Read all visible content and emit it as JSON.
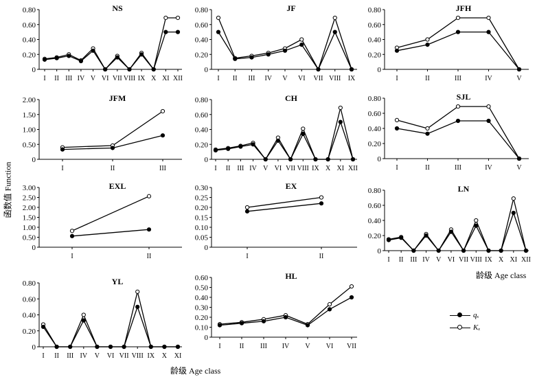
{
  "figure": {
    "y_title": "函数值 Function",
    "x_title_mid": "龄级 Age class",
    "x_title_bottom": "龄级 Age class",
    "legend": [
      {
        "label": "qₓ",
        "marker": "filled"
      },
      {
        "label": "Kₓ",
        "marker": "hollow"
      }
    ]
  },
  "chart_data": [
    {
      "type": "line",
      "title": "NS",
      "categories": [
        "I",
        "II",
        "III",
        "IV",
        "V",
        "VI",
        "VII",
        "VIII",
        "IX",
        "X",
        "XI",
        "XII"
      ],
      "ylim": [
        0,
        0.8
      ],
      "yticks": [
        "0",
        "0.20",
        "0.40",
        "0.60",
        "0.80"
      ],
      "series": [
        {
          "name": "qₓ",
          "values": [
            0.13,
            0.15,
            0.18,
            0.11,
            0.25,
            0,
            0.16,
            0,
            0.2,
            0,
            0.5,
            0.5
          ]
        },
        {
          "name": "Kₓ",
          "values": [
            0.14,
            0.16,
            0.2,
            0.12,
            0.28,
            0,
            0.18,
            0,
            0.22,
            0,
            0.69,
            0.69
          ]
        }
      ]
    },
    {
      "type": "line",
      "title": "JF",
      "categories": [
        "I",
        "II",
        "III",
        "IV",
        "V",
        "VI",
        "VII",
        "VIII",
        "IX"
      ],
      "ylim": [
        0,
        0.8
      ],
      "yticks": [
        "0",
        "0.20",
        "0.40",
        "0.60",
        "0.80"
      ],
      "series": [
        {
          "name": "qₓ",
          "values": [
            0.5,
            0.14,
            0.16,
            0.2,
            0.25,
            0.33,
            0,
            0.5,
            0
          ]
        },
        {
          "name": "Kₓ",
          "values": [
            0.69,
            0.15,
            0.18,
            0.22,
            0.28,
            0.4,
            0,
            0.69,
            0
          ]
        }
      ]
    },
    {
      "type": "line",
      "title": "JFH",
      "categories": [
        "I",
        "II",
        "III",
        "IV",
        "V"
      ],
      "ylim": [
        0,
        0.8
      ],
      "yticks": [
        "0",
        "0.20",
        "0.40",
        "0.60",
        "0.80"
      ],
      "series": [
        {
          "name": "qₓ",
          "values": [
            0.25,
            0.33,
            0.5,
            0.5,
            0
          ]
        },
        {
          "name": "Kₓ",
          "values": [
            0.29,
            0.4,
            0.69,
            0.69,
            0
          ]
        }
      ]
    },
    {
      "type": "line",
      "title": "JFM",
      "categories": [
        "I",
        "II",
        "III"
      ],
      "ylim": [
        0,
        2
      ],
      "yticks": [
        "0",
        "0.50",
        "1.00",
        "1.50",
        "2.00"
      ],
      "series": [
        {
          "name": "qₓ",
          "values": [
            0.33,
            0.38,
            0.8
          ]
        },
        {
          "name": "Kₓ",
          "values": [
            0.4,
            0.46,
            1.61
          ]
        }
      ]
    },
    {
      "type": "line",
      "title": "CH",
      "categories": [
        "I",
        "II",
        "III",
        "IV",
        "V",
        "VI",
        "VII",
        "VIII",
        "IX",
        "X",
        "XI",
        "XII"
      ],
      "ylim": [
        0,
        0.8
      ],
      "yticks": [
        "0",
        "0.20",
        "0.40",
        "0.60",
        "0.80"
      ],
      "series": [
        {
          "name": "qₓ",
          "values": [
            0.12,
            0.14,
            0.17,
            0.2,
            0,
            0.25,
            0,
            0.34,
            0,
            0,
            0.5,
            0
          ]
        },
        {
          "name": "Kₓ",
          "values": [
            0.13,
            0.15,
            0.18,
            0.22,
            0,
            0.29,
            0,
            0.41,
            0,
            0,
            0.69,
            0
          ]
        }
      ]
    },
    {
      "type": "line",
      "title": "SJL",
      "categories": [
        "I",
        "II",
        "III",
        "IV",
        "V"
      ],
      "ylim": [
        0,
        0.8
      ],
      "yticks": [
        "0",
        "0.20",
        "0.40",
        "0.60",
        "0.80"
      ],
      "series": [
        {
          "name": "qₓ",
          "values": [
            0.4,
            0.33,
            0.5,
            0.5,
            0
          ]
        },
        {
          "name": "Kₓ",
          "values": [
            0.51,
            0.4,
            0.69,
            0.69,
            0
          ]
        }
      ]
    },
    {
      "type": "line",
      "title": "EXL",
      "categories": [
        "I",
        "II"
      ],
      "ylim": [
        0,
        3
      ],
      "yticks": [
        "0",
        "0.50",
        "1.00",
        "1.50",
        "2.00",
        "2.50",
        "3.00"
      ],
      "series": [
        {
          "name": "qₓ",
          "values": [
            0.56,
            0.89
          ]
        },
        {
          "name": "Kₓ",
          "values": [
            0.82,
            2.56
          ]
        }
      ]
    },
    {
      "type": "line",
      "title": "EX",
      "categories": [
        "I",
        "II"
      ],
      "ylim": [
        0,
        0.3
      ],
      "yticks": [
        "0",
        "0.05",
        "0.10",
        "0.15",
        "0.20",
        "0.25",
        "0.30"
      ],
      "series": [
        {
          "name": "qₓ",
          "values": [
            0.18,
            0.22
          ]
        },
        {
          "name": "Kₓ",
          "values": [
            0.2,
            0.25
          ]
        }
      ]
    },
    {
      "type": "line",
      "title": "LN",
      "categories": [
        "I",
        "II",
        "III",
        "IV",
        "V",
        "VI",
        "VII",
        "VIII",
        "IX",
        "X",
        "XI",
        "XII"
      ],
      "ylim": [
        0,
        0.8
      ],
      "yticks": [
        "0",
        "0.20",
        "0.40",
        "0.60",
        "0.80"
      ],
      "series": [
        {
          "name": "qₓ",
          "values": [
            0.14,
            0.17,
            0,
            0.2,
            0,
            0.25,
            0,
            0.33,
            0,
            0,
            0.5,
            0
          ]
        },
        {
          "name": "Kₓ",
          "values": [
            0.15,
            0.18,
            0,
            0.22,
            0,
            0.28,
            0,
            0.4,
            0,
            0,
            0.69,
            0
          ]
        }
      ]
    },
    {
      "type": "line",
      "title": "YL",
      "categories": [
        "I",
        "II",
        "III",
        "IV",
        "V",
        "VI",
        "VII",
        "VIII",
        "IX",
        "X",
        "XI"
      ],
      "ylim": [
        0,
        0.8
      ],
      "yticks": [
        "0",
        "0.20",
        "0.40",
        "0.60",
        "0.80"
      ],
      "series": [
        {
          "name": "qₓ",
          "values": [
            0.25,
            0,
            0,
            0.33,
            0,
            0,
            0,
            0.5,
            0,
            0,
            0
          ]
        },
        {
          "name": "Kₓ",
          "values": [
            0.28,
            0,
            0,
            0.4,
            0,
            0,
            0,
            0.69,
            0,
            0,
            0
          ]
        }
      ]
    },
    {
      "type": "line",
      "title": "HL",
      "categories": [
        "I",
        "II",
        "III",
        "IV",
        "V",
        "VI",
        "VII"
      ],
      "ylim": [
        0,
        0.6
      ],
      "yticks": [
        "0",
        "0.10",
        "0.20",
        "0.30",
        "0.40",
        "0.50",
        "0.60"
      ],
      "series": [
        {
          "name": "qₓ",
          "values": [
            0.12,
            0.14,
            0.16,
            0.2,
            0.12,
            0.28,
            0.4
          ]
        },
        {
          "name": "Kₓ",
          "values": [
            0.13,
            0.15,
            0.18,
            0.22,
            0.13,
            0.33,
            0.51
          ]
        }
      ]
    }
  ]
}
